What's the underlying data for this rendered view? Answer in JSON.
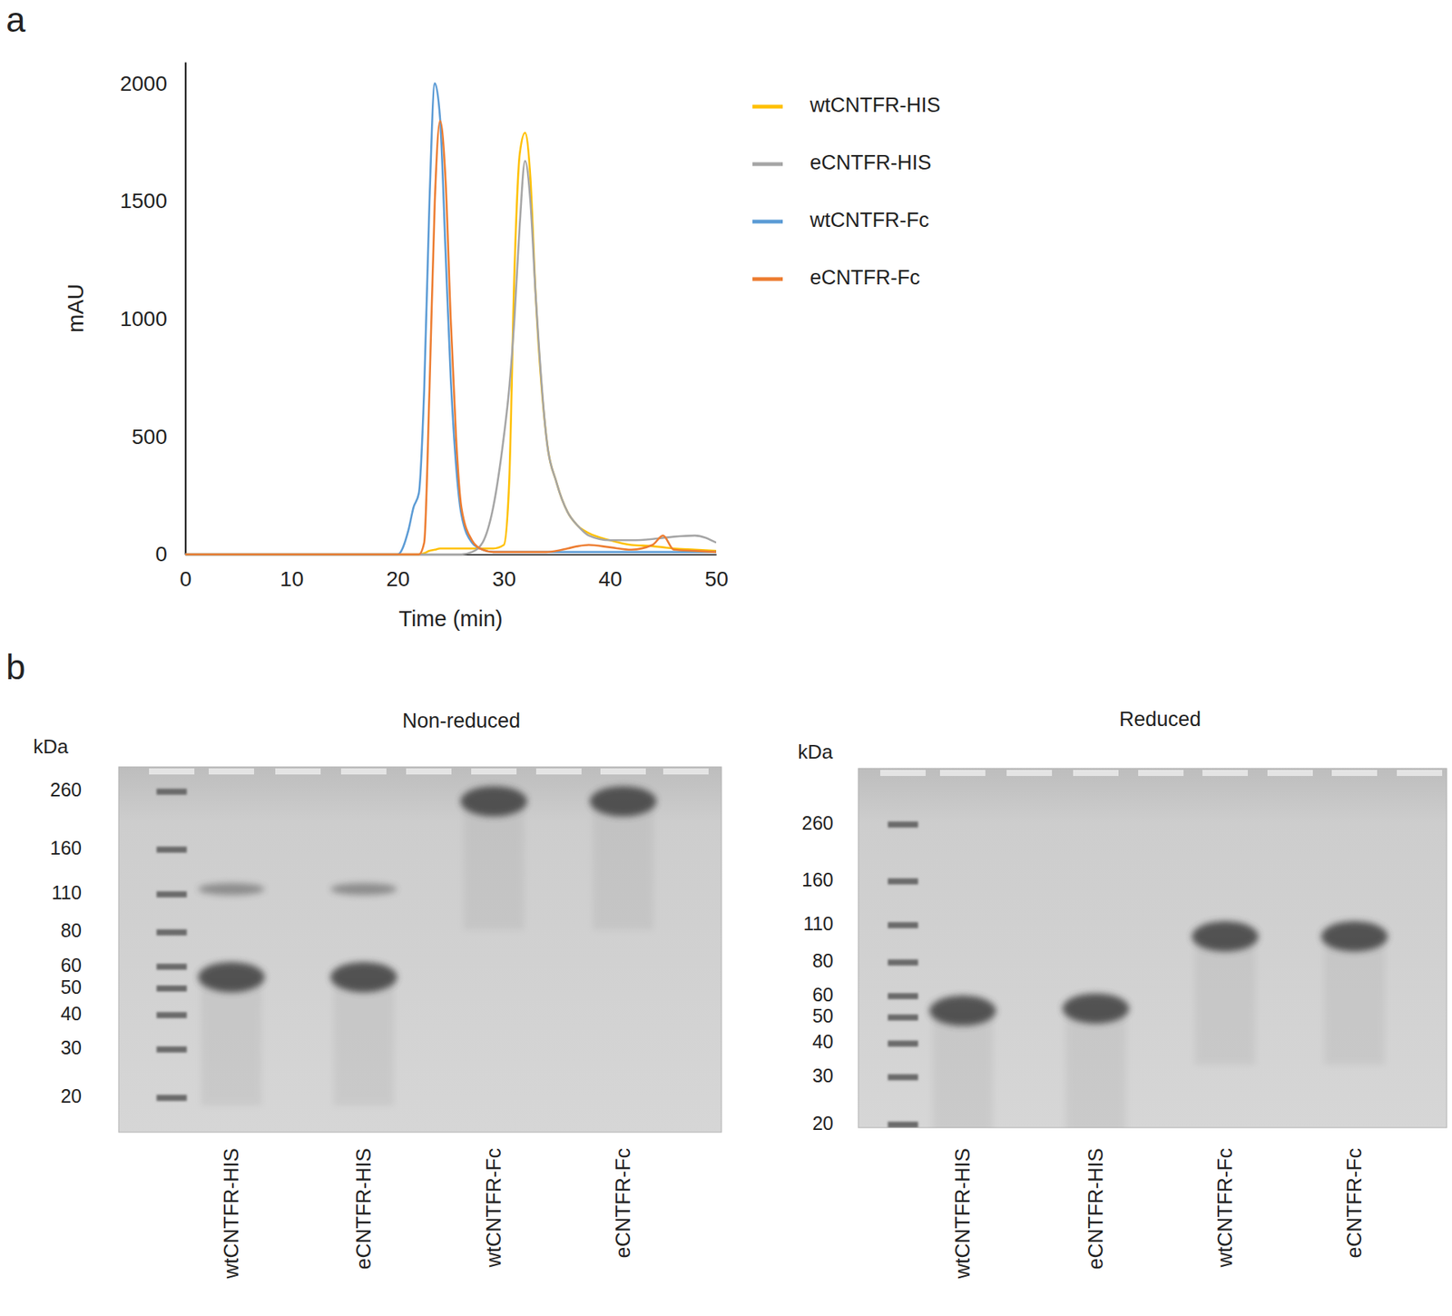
{
  "chart_data": [
    {
      "type": "line",
      "panel": "a",
      "xlabel": "Time (min)",
      "ylabel": "mAU",
      "x": [
        0,
        10,
        19,
        20,
        21,
        21.5,
        22,
        22.5,
        23,
        23.5,
        24,
        24.5,
        25,
        25.5,
        26,
        27,
        28,
        29,
        30,
        30.5,
        31,
        31.5,
        32,
        32.5,
        33,
        34,
        35,
        36,
        37,
        38,
        40,
        42,
        44,
        45,
        46,
        48,
        50
      ],
      "series": [
        {
          "name": "wtCNTFR-HIS",
          "color": "#ffc000",
          "values": [
            0,
            0,
            0,
            0,
            0,
            0,
            0,
            5,
            15,
            20,
            25,
            25,
            25,
            25,
            25,
            25,
            25,
            25,
            40,
            300,
            1200,
            1700,
            1790,
            1600,
            1100,
            500,
            300,
            180,
            120,
            90,
            60,
            40,
            35,
            30,
            25,
            20,
            15
          ]
        },
        {
          "name": "eCNTFR-HIS",
          "color": "#a5a5a5",
          "values": [
            0,
            0,
            0,
            0,
            0,
            0,
            0,
            0,
            0,
            0,
            0,
            0,
            0,
            0,
            0,
            10,
            50,
            200,
            500,
            700,
            1000,
            1400,
            1670,
            1500,
            1100,
            500,
            300,
            180,
            120,
            80,
            60,
            60,
            65,
            70,
            75,
            80,
            50
          ]
        },
        {
          "name": "wtCNTFR-Fc",
          "color": "#5b9bd5",
          "values": [
            0,
            0,
            0,
            0,
            100,
            200,
            260,
            700,
            1500,
            2000,
            1850,
            1300,
            750,
            380,
            170,
            50,
            20,
            10,
            10,
            10,
            10,
            10,
            10,
            10,
            10,
            10,
            10,
            10,
            10,
            10,
            10,
            10,
            10,
            10,
            10,
            10,
            10
          ]
        },
        {
          "name": "eCNTFR-Fc",
          "color": "#ed7d31",
          "values": [
            0,
            0,
            0,
            0,
            0,
            0,
            0,
            50,
            700,
            1500,
            1840,
            1600,
            1000,
            500,
            200,
            60,
            20,
            10,
            10,
            10,
            10,
            10,
            10,
            10,
            10,
            10,
            15,
            25,
            35,
            40,
            30,
            20,
            40,
            80,
            20,
            15,
            10
          ]
        }
      ],
      "xlim": [
        0,
        50
      ],
      "xticks": [
        0,
        10,
        20,
        30,
        40,
        50
      ],
      "ylim": [
        0,
        2090
      ],
      "yticks": [
        0,
        500,
        1000,
        1500,
        2000
      ],
      "legend": "right",
      "grid": false
    },
    {
      "type": "gel",
      "panel": "b",
      "title": "Non-reduced",
      "ylabel": "kDa",
      "log": "y",
      "categories": [
        "wtCNTFR-HIS",
        "eCNTFR-HIS",
        "wtCNTFR-Fc",
        "eCNTFR-Fc"
      ],
      "bands": [
        [
          55,
          115
        ],
        [
          55,
          115
        ],
        [
          240
        ],
        [
          240
        ]
      ],
      "ylim": [
        15,
        320
      ],
      "yticks": [
        260,
        160,
        110,
        80,
        60,
        50,
        40,
        30,
        20
      ]
    },
    {
      "type": "gel",
      "title": "Reduced",
      "ylabel": "kDa",
      "log": "y",
      "categories": [
        "wtCNTFR-HIS",
        "eCNTFR-HIS",
        "wtCNTFR-Fc",
        "eCNTFR-Fc"
      ],
      "bands": [
        [
          53
        ],
        [
          54
        ],
        [
          100
        ],
        [
          100
        ]
      ],
      "ylim": [
        19.5,
        420
      ],
      "yticks": [
        260,
        160,
        110,
        80,
        60,
        50,
        40,
        30,
        20
      ]
    }
  ]
}
